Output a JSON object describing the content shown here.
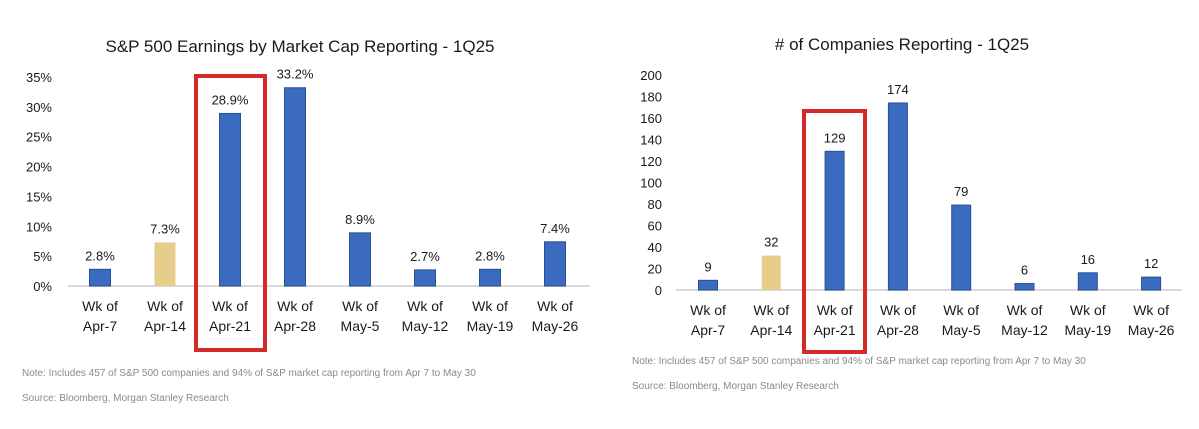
{
  "colors": {
    "bar": "#3a6bbf",
    "bar_highlight": "#e6cd8c",
    "box": "#d42a2a",
    "axis": "#d9d9d9"
  },
  "chart_data": [
    {
      "type": "bar",
      "title": "S&P 500 Earnings by Market Cap Reporting - 1Q25",
      "categories": [
        [
          "Wk of",
          "Apr-7"
        ],
        [
          "Wk of",
          "Apr-14"
        ],
        [
          "Wk of",
          "Apr-21"
        ],
        [
          "Wk of",
          "Apr-28"
        ],
        [
          "Wk of",
          "May-5"
        ],
        [
          "Wk of",
          "May-12"
        ],
        [
          "Wk of",
          "May-19"
        ],
        [
          "Wk of",
          "May-26"
        ]
      ],
      "values": [
        2.8,
        7.3,
        28.9,
        33.2,
        8.9,
        2.7,
        2.8,
        7.4
      ],
      "data_labels": [
        "2.8%",
        "7.3%",
        "28.9%",
        "33.2%",
        "8.9%",
        "2.7%",
        "2.8%",
        "7.4%"
      ],
      "highlight_index": 1,
      "boxed_index": 2,
      "yticks": [
        "0%",
        "5%",
        "10%",
        "15%",
        "20%",
        "25%",
        "30%",
        "35%"
      ],
      "ylim": [
        0,
        35
      ],
      "note": "Note: Includes 457 of S&P 500 companies and 94% of S&P market cap reporting from Apr 7 to May 30",
      "source": "Source: Bloomberg, Morgan Stanley Research"
    },
    {
      "type": "bar",
      "title": "# of Companies Reporting - 1Q25",
      "categories": [
        [
          "Wk of",
          "Apr-7"
        ],
        [
          "Wk of",
          "Apr-14"
        ],
        [
          "Wk of",
          "Apr-21"
        ],
        [
          "Wk of",
          "Apr-28"
        ],
        [
          "Wk of",
          "May-5"
        ],
        [
          "Wk of",
          "May-12"
        ],
        [
          "Wk of",
          "May-19"
        ],
        [
          "Wk of",
          "May-26"
        ]
      ],
      "values": [
        9,
        32,
        129,
        174,
        79,
        6,
        16,
        12
      ],
      "data_labels": [
        "9",
        "32",
        "129",
        "174",
        "79",
        "6",
        "16",
        "12"
      ],
      "highlight_index": 1,
      "boxed_index": 2,
      "yticks": [
        "0",
        "20",
        "40",
        "60",
        "80",
        "100",
        "120",
        "140",
        "160",
        "180",
        "200"
      ],
      "ylim": [
        0,
        200
      ],
      "note": "Note: Includes 457 of S&P 500 companies and 94% of S&P market cap reporting from Apr 7 to May 30",
      "source": "Source: Bloomberg, Morgan Stanley Research"
    }
  ]
}
